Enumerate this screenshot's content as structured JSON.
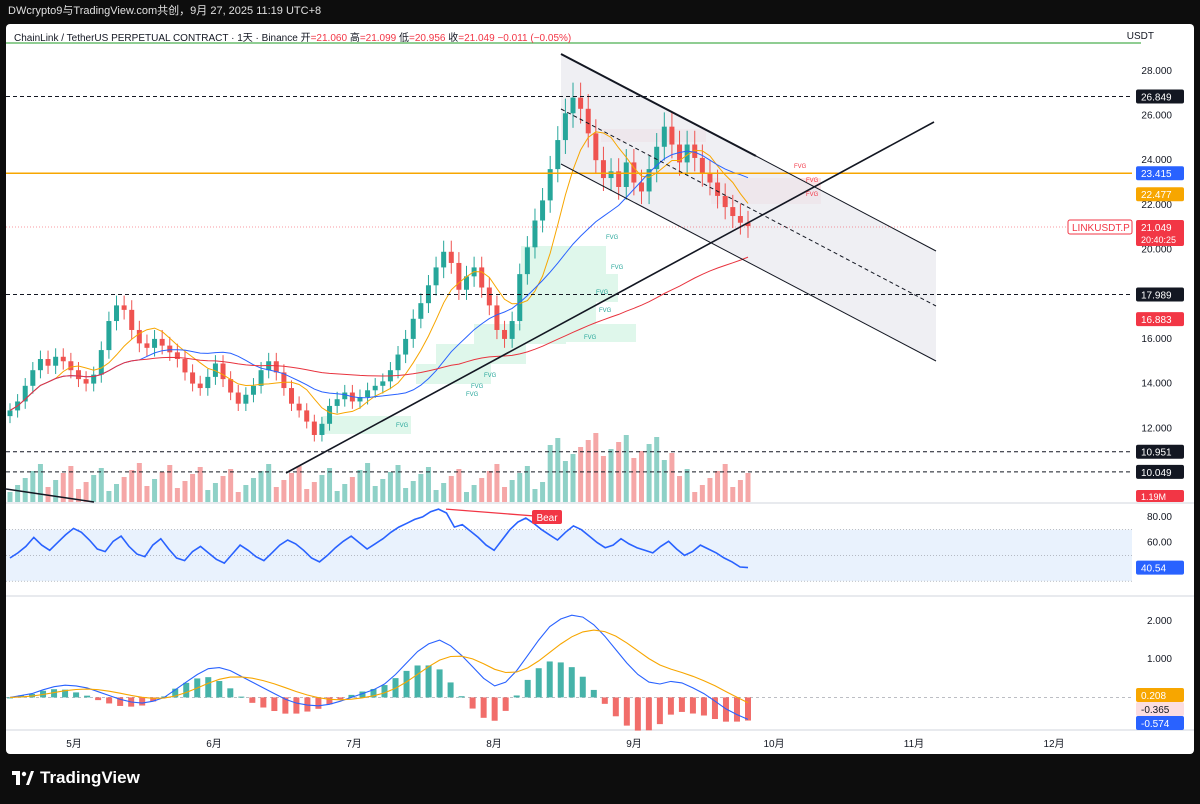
{
  "topbar": {
    "text": "DWcrypto9与TradingView.com共创，9月 27, 2025 11:19 UTC+8"
  },
  "header": {
    "symbol": "ChainLink / TetherUS PERPETUAL CONTRACT · 1天 · Binance",
    "open_label": "开",
    "open": "=21.060",
    "high_label": "高",
    "high": "=21.099",
    "low_label": "低",
    "low": "=20.956",
    "close_label": "收",
    "close": "=21.049",
    "change": "−0.011 (−0.05%)"
  },
  "currency": "USDT",
  "colors": {
    "up": "#26a69a",
    "down": "#ef5350",
    "orange": "#f7a600",
    "blue": "#2962ff",
    "red_ma": "#e8333e",
    "rsi": "#2962ff"
  },
  "chart_data": [
    {
      "type": "candlestick",
      "title": "ChainLink / TetherUS PERPETUAL CONTRACT",
      "yticks": [
        "28.000",
        "26.000",
        "24.000",
        "22.000",
        "20.000",
        "16.000",
        "14.000",
        "12.000"
      ],
      "ylim": [
        8.7,
        29.2
      ],
      "xticks": [
        "5月",
        "6月",
        "7月",
        "8月",
        "9月",
        "10月",
        "11月",
        "12月"
      ],
      "x_month_index": [
        0,
        1,
        2,
        3,
        4,
        5,
        6,
        7
      ],
      "price_closes": [
        12.8,
        13.2,
        13.9,
        14.6,
        15.1,
        14.8,
        15.2,
        15.0,
        14.6,
        14.2,
        14.0,
        14.4,
        15.5,
        16.8,
        17.5,
        17.3,
        16.4,
        15.8,
        15.6,
        16.0,
        15.7,
        15.4,
        15.1,
        14.5,
        14.0,
        13.8,
        14.3,
        14.9,
        14.2,
        13.6,
        13.1,
        13.5,
        13.9,
        14.6,
        15.0,
        14.5,
        13.8,
        13.1,
        12.8,
        12.3,
        11.7,
        12.2,
        13.0,
        13.3,
        13.6,
        13.2,
        13.4,
        13.7,
        13.9,
        14.1,
        14.6,
        15.3,
        16.0,
        16.9,
        17.6,
        18.4,
        19.2,
        19.9,
        19.4,
        18.2,
        18.8,
        19.2,
        18.3,
        17.5,
        16.4,
        16.0,
        16.8,
        18.9,
        20.1,
        21.3,
        22.2,
        23.6,
        24.9,
        26.1,
        26.8,
        26.3,
        25.2,
        24.0,
        23.2,
        23.5,
        22.8,
        23.9,
        23.0,
        22.6,
        23.6,
        24.6,
        25.5,
        24.7,
        23.9,
        24.7,
        24.1,
        23.4,
        23.0,
        22.4,
        21.9,
        21.5,
        21.2,
        21.05
      ],
      "levels": [
        {
          "label": "26.849",
          "value": 26.849,
          "style": "dashed",
          "tag_bg": "#131722"
        },
        {
          "label": "23.415",
          "value": 23.415,
          "style": "solid",
          "tag_bg": "#2962ff"
        },
        {
          "label": "22.477",
          "value": 22.477,
          "style": "none",
          "tag_bg": "#f7a600"
        },
        {
          "label": "17.989",
          "value": 17.989,
          "style": "dashed",
          "tag_bg": "#131722"
        },
        {
          "label": "16.883",
          "value": 16.883,
          "style": "none",
          "tag_bg": "#f23645"
        },
        {
          "label": "10.951",
          "value": 10.951,
          "style": "dashed",
          "tag_bg": "#131722"
        },
        {
          "label": "10.049",
          "value": 10.049,
          "style": "dashed",
          "tag_bg": "#131722"
        }
      ],
      "symbol_tag": "LINKUSDT.P",
      "last_price": "21.049",
      "countdown": "20:40:25",
      "volume_tag": "1.19M",
      "fvg_label": "FVG"
    },
    {
      "type": "line",
      "title": "RSI",
      "yticks": [
        "80.00",
        "60.00"
      ],
      "last": "40.54",
      "divergence_label": "Bear",
      "values": [
        48,
        52,
        57,
        64,
        58,
        54,
        60,
        66,
        71,
        68,
        62,
        55,
        53,
        61,
        65,
        57,
        51,
        49,
        58,
        63,
        55,
        48,
        46,
        53,
        57,
        52,
        47,
        44,
        51,
        58,
        54,
        49,
        46,
        52,
        58,
        62,
        59,
        54,
        48,
        45,
        50,
        56,
        61,
        65,
        60,
        55,
        59,
        63,
        68,
        72,
        75,
        78,
        80,
        84,
        86,
        83,
        72,
        74,
        69,
        64,
        58,
        54,
        62,
        70,
        76,
        79,
        75,
        70,
        66,
        62,
        68,
        73,
        70,
        65,
        60,
        56,
        58,
        63,
        59,
        56,
        54,
        52,
        57,
        61,
        55,
        50,
        53,
        58,
        55,
        52,
        48,
        45,
        41,
        40.54
      ]
    },
    {
      "type": "macd",
      "title": "MACD",
      "yticks": [
        "2.000",
        "1.000"
      ],
      "tags": [
        "0.208",
        "-0.365",
        "-0.574"
      ],
      "macd_line": [
        0.0,
        0.05,
        0.1,
        0.2,
        0.28,
        0.32,
        0.3,
        0.25,
        0.15,
        0.05,
        -0.05,
        -0.12,
        -0.15,
        -0.1,
        0.0,
        0.2,
        0.4,
        0.6,
        0.75,
        0.78,
        0.7,
        0.55,
        0.4,
        0.25,
        0.1,
        -0.05,
        -0.15,
        -0.2,
        -0.22,
        -0.18,
        -0.1,
        0.0,
        0.1,
        0.2,
        0.35,
        0.6,
        0.9,
        1.2,
        1.4,
        1.5,
        1.35,
        1.1,
        0.8,
        0.5,
        0.3,
        0.4,
        0.7,
        1.1,
        1.5,
        1.85,
        2.05,
        2.15,
        2.1,
        1.9,
        1.6,
        1.25,
        0.9,
        0.6,
        0.4,
        0.35,
        0.42,
        0.38,
        0.25,
        0.1,
        -0.1,
        -0.3,
        -0.45,
        -0.574
      ]
    }
  ]
}
